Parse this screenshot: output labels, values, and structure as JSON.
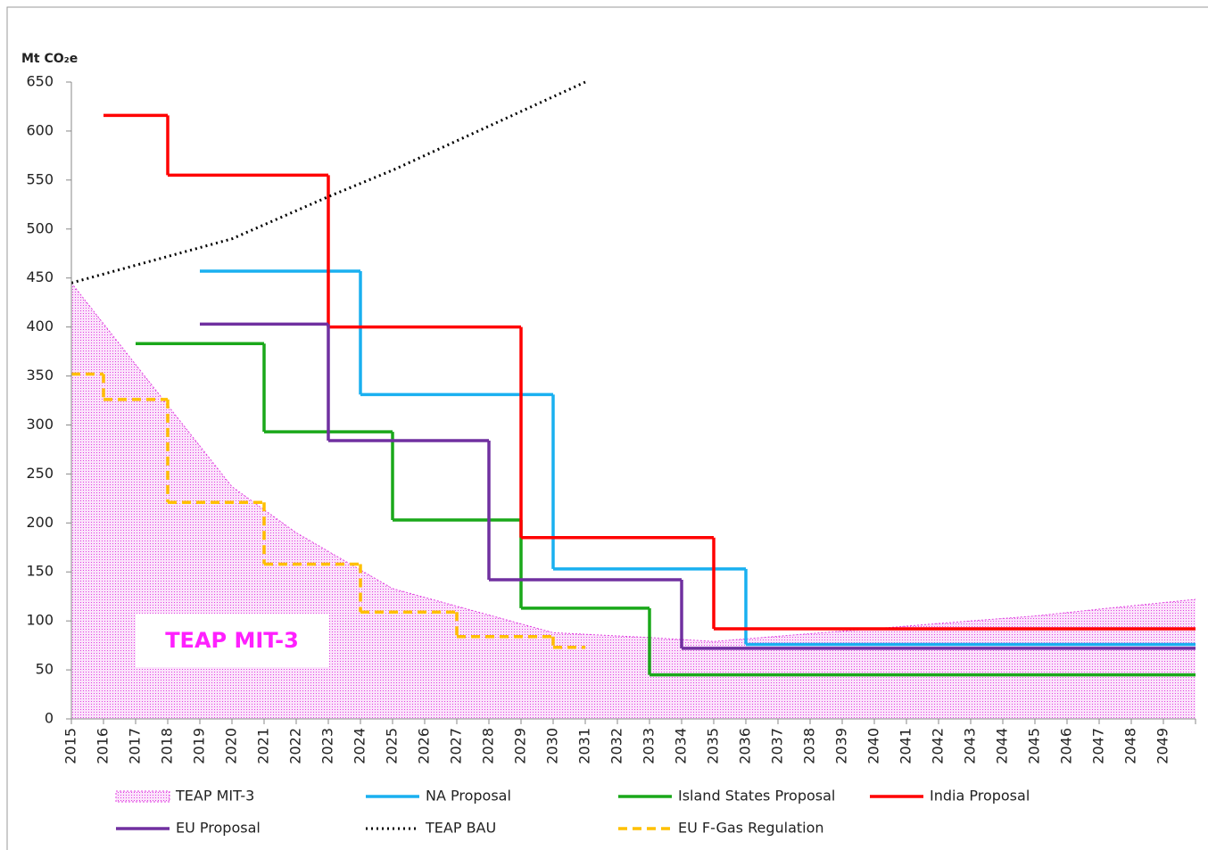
{
  "chart_data": {
    "type": "line",
    "ylabel": "Mt CO₂e",
    "annotation": "TEAP MIT-3",
    "xlim": [
      2015,
      2050
    ],
    "xticks": [
      2015,
      2016,
      2017,
      2018,
      2019,
      2020,
      2021,
      2022,
      2023,
      2024,
      2025,
      2026,
      2027,
      2028,
      2029,
      2030,
      2031,
      2032,
      2033,
      2034,
      2035,
      2036,
      2037,
      2038,
      2039,
      2040,
      2041,
      2042,
      2043,
      2044,
      2045,
      2046,
      2047,
      2048,
      2049
    ],
    "ylim": [
      0,
      650
    ],
    "yticks": [
      0,
      50,
      100,
      150,
      200,
      250,
      300,
      350,
      400,
      450,
      500,
      550,
      600,
      650
    ],
    "series": [
      {
        "name": "TEAP MIT-3",
        "color": "#e040e0",
        "style": "area",
        "x": [
          2015,
          2018,
          2020,
          2022,
          2025,
          2027,
          2030,
          2033,
          2035,
          2038,
          2040,
          2043,
          2045,
          2047,
          2050
        ],
        "values": [
          445,
          320,
          237,
          190,
          133,
          115,
          88,
          83,
          79,
          87,
          92,
          100,
          105,
          112,
          122
        ]
      },
      {
        "name": "NA Proposal",
        "color": "#1ab0f0",
        "style": "step",
        "x": [
          2019,
          2024,
          2030,
          2036,
          2050
        ],
        "values": [
          457,
          331,
          153,
          76,
          76
        ]
      },
      {
        "name": "Island States Proposal",
        "color": "#1aa81a",
        "style": "step",
        "x": [
          2017,
          2021,
          2025,
          2029,
          2033,
          2050
        ],
        "values": [
          383,
          293,
          203,
          113,
          45,
          45
        ]
      },
      {
        "name": "India Proposal",
        "color": "#ff0000",
        "style": "step",
        "x": [
          2016,
          2018,
          2023,
          2029,
          2035,
          2050
        ],
        "values": [
          616,
          555,
          400,
          185,
          92,
          92
        ]
      },
      {
        "name": "EU Proposal",
        "color": "#7030a0",
        "style": "step",
        "x": [
          2019,
          2023,
          2028,
          2034,
          2050
        ],
        "values": [
          403,
          284,
          142,
          72,
          72
        ]
      },
      {
        "name": "TEAP BAU",
        "color": "#000000",
        "style": "dotted",
        "x": [
          2015,
          2020,
          2023,
          2025,
          2028,
          2030,
          2031
        ],
        "values": [
          445,
          490,
          533,
          560,
          605,
          635,
          650
        ]
      },
      {
        "name": "EU F-Gas Regulation",
        "color": "#ffc000",
        "style": "dashed-step",
        "x": [
          2015,
          2016,
          2018,
          2021,
          2024,
          2027,
          2030,
          2031
        ],
        "values": [
          352,
          326,
          221,
          158,
          109,
          84,
          73,
          73
        ]
      }
    ]
  }
}
